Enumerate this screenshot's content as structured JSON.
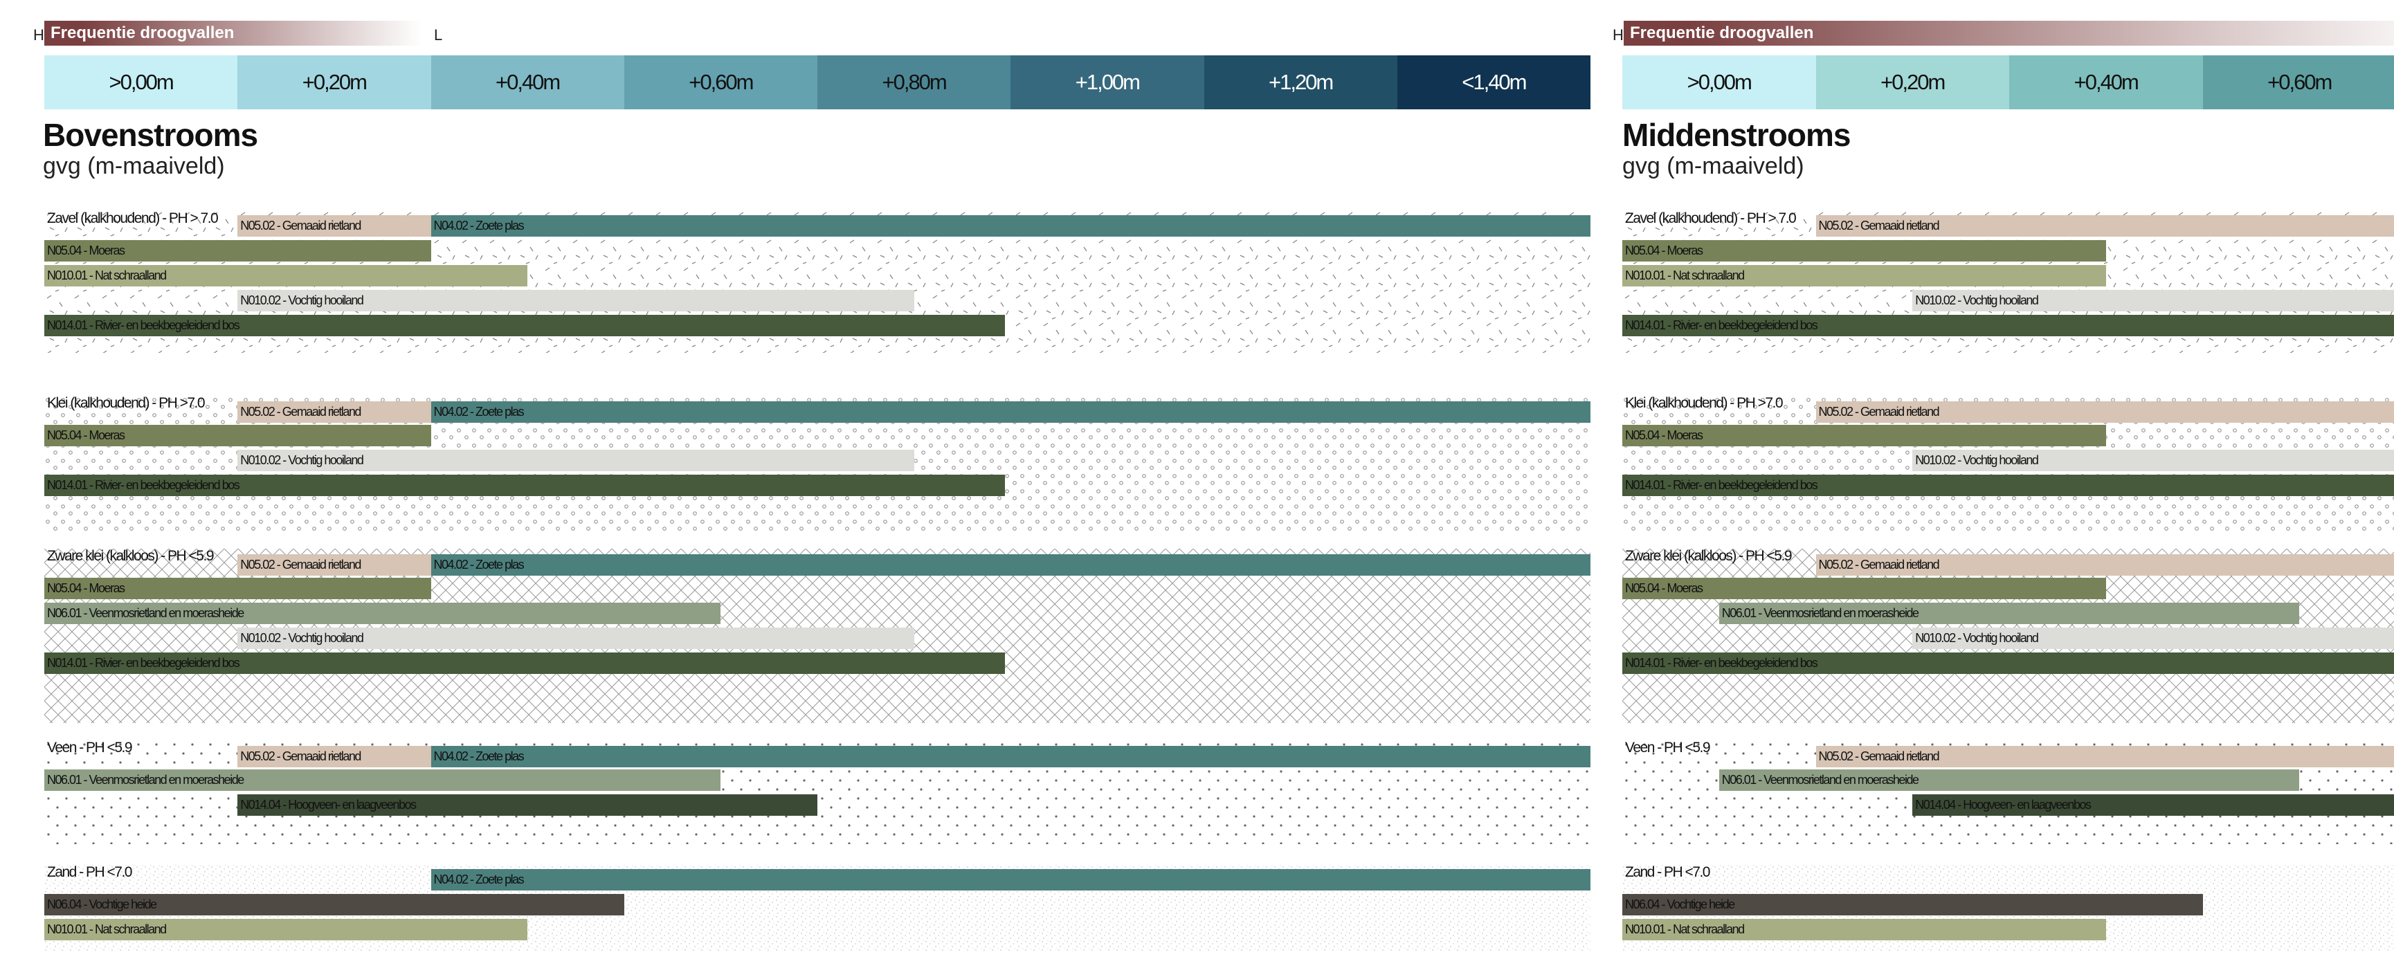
{
  "freq_title": "Frequentie droogvallen",
  "freq_hl": {
    "h": "H",
    "l": "L"
  },
  "sub_title": "gvg (m-maaiveld)",
  "scale": [
    ">0,00m",
    "+0,20m",
    "+0,40m",
    "+0,60m",
    "+0,80m",
    "+1,00m",
    "+1,20m",
    "<1,40m"
  ],
  "colors": {
    "scale": [
      "#c6f0f5",
      "#a2d6e0",
      "#7fbac6",
      "#64a2b0",
      "#4d8796",
      "#37697e",
      "#214f66",
      "#0f3350"
    ],
    "scale_text": [
      "#111",
      "#111",
      "#111",
      "#111",
      "#111",
      "#fff",
      "#fff",
      "#fff"
    ],
    "scale_m": [
      "#c6f0f5",
      "#a2d8d6",
      "#7fbfbd",
      "#5fa1a3"
    ],
    "freq_gradient": [
      "#7a3f40",
      "#ffffff"
    ],
    "types": {
      "N05.02": "#d7c4b4",
      "N04.02": "#4b807d",
      "N05.04": "#778258",
      "N010.01": "#a8ae84",
      "N010.02": "#dcdcd8",
      "N014.01": "#475a3c",
      "N06.01": "#8e9f85",
      "N014.04": "#3b4a35",
      "N06.04": "#4f4a44"
    }
  },
  "panels": [
    {
      "name": "Bovenstrooms",
      "soils": [
        {
          "label": "Zavel (kalkhoudend) - PH > 7.0",
          "pattern": "dash",
          "bars": [
            {
              "type": "N05.02",
              "label": "N05.02 - Gemaaid rietland",
              "from": 1,
              "to": 2
            },
            {
              "type": "N04.02",
              "label": "N04.02 - Zoete plas",
              "from": 2,
              "to": 8
            },
            {
              "type": "N05.04",
              "label": "N05.04 - Moeras",
              "from": 0,
              "to": 2
            },
            {
              "type": "N010.01",
              "label": "N010.01 - Nat schraalland",
              "from": 0,
              "to": 2.5
            },
            {
              "type": "N010.02",
              "label": "N010.02 - Vochtig hooiland",
              "from": 1,
              "to": 4.5
            },
            {
              "type": "N014.01",
              "label": "N014.01 - Rivier- en beekbegeleidend bos",
              "from": 0,
              "to": 4.97
            }
          ]
        },
        {
          "label": "Klei (kalkhoudend) - PH >7.0",
          "pattern": "circle",
          "bars": [
            {
              "type": "N05.02",
              "label": "N05.02 - Gemaaid rietland",
              "from": 1,
              "to": 2
            },
            {
              "type": "N04.02",
              "label": "N04.02 - Zoete plas",
              "from": 2,
              "to": 8
            },
            {
              "type": "N05.04",
              "label": "N05.04 - Moeras",
              "from": 0,
              "to": 2
            },
            {
              "type": "N010.02",
              "label": "N010.02 - Vochtig hooiland",
              "from": 1,
              "to": 4.5
            },
            {
              "type": "N014.01",
              "label": "N014.01 - Rivier- en beekbegeleidend bos",
              "from": 0,
              "to": 4.97
            }
          ]
        },
        {
          "label": "Zware klei (kalkloos) - PH <5.9",
          "pattern": "cross",
          "bars": [
            {
              "type": "N05.02",
              "label": "N05.02 - Gemaaid rietland",
              "from": 1,
              "to": 2
            },
            {
              "type": "N04.02",
              "label": "N04.02 - Zoete plas",
              "from": 2,
              "to": 8
            },
            {
              "type": "N05.04",
              "label": "N05.04 - Moeras",
              "from": 0,
              "to": 2
            },
            {
              "type": "N06.01",
              "label": "N06.01 - Veenmosrietland en moerasheide",
              "from": 0,
              "to": 3.5
            },
            {
              "type": "N010.02",
              "label": "N010.02 - Vochtig hooiland",
              "from": 1,
              "to": 4.5
            },
            {
              "type": "N014.01",
              "label": "N014.01 - Rivier- en beekbegeleidend bos",
              "from": 0,
              "to": 4.97
            }
          ]
        },
        {
          "label": "Veen  - PH <5.9",
          "pattern": "dot",
          "bars": [
            {
              "type": "N05.02",
              "label": "N05.02 - Gemaaid rietland",
              "from": 1,
              "to": 2
            },
            {
              "type": "N04.02",
              "label": "N04.02 - Zoete plas",
              "from": 2,
              "to": 8
            },
            {
              "type": "N06.01",
              "label": "N06.01 - Veenmosrietland en moerasheide",
              "from": 0,
              "to": 3.5
            },
            {
              "type": "N014.04",
              "label": "N014.04 - Hoogveen- en laagveenbos",
              "from": 1,
              "to": 4
            }
          ]
        },
        {
          "label": "Zand - PH <7.0",
          "pattern": "speck",
          "bars": [
            {
              "type": "N04.02",
              "label": "N04.02 - Zoete plas",
              "from": 2,
              "to": 8
            },
            {
              "type": "N06.04",
              "label": "N06.04 - Vochtige heide",
              "from": 0,
              "to": 3
            },
            {
              "type": "N010.01",
              "label": "N010.01 - Nat schraalland",
              "from": 0,
              "to": 2.5
            }
          ]
        }
      ]
    },
    {
      "name": "Middenstrooms",
      "soils": [
        {
          "label": "Zavel (kalkhoudend) - PH > 7.0",
          "pattern": "dash",
          "bars": [
            {
              "type": "N05.02",
              "label": "N05.02 - Gemaaid rietland",
              "from": 1,
              "to": 5
            },
            {
              "type": "N05.04",
              "label": "N05.04 - Moeras",
              "from": 0,
              "to": 2.5
            },
            {
              "type": "N010.01",
              "label": "N010.01 - Nat schraalland",
              "from": 0,
              "to": 2.5
            },
            {
              "type": "N010.02",
              "label": "N010.02 - Vochtig hooiland",
              "from": 1.5,
              "to": 5
            },
            {
              "type": "N014.01",
              "label": "N014.01 - Rivier- en beekbegeleidend bos",
              "from": 0,
              "to": 5
            }
          ]
        },
        {
          "label": "Klei (kalkhoudend) - PH >7.0",
          "pattern": "circle",
          "bars": [
            {
              "type": "N05.02",
              "label": "N05.02 - Gemaaid rietland",
              "from": 1,
              "to": 5
            },
            {
              "type": "N05.04",
              "label": "N05.04 - Moeras",
              "from": 0,
              "to": 2.5
            },
            {
              "type": "N010.02",
              "label": "N010.02 - Vochtig hooiland",
              "from": 1.5,
              "to": 5
            },
            {
              "type": "N014.01",
              "label": "N014.01 - Rivier- en beekbegeleidend bos",
              "from": 0,
              "to": 5
            }
          ]
        },
        {
          "label": "Zware klei (kalkloos) - PH <5.9",
          "pattern": "cross",
          "bars": [
            {
              "type": "N05.02",
              "label": "N05.02 - Gemaaid rietland",
              "from": 1,
              "to": 5
            },
            {
              "type": "N05.04",
              "label": "N05.04 - Moeras",
              "from": 0,
              "to": 2.5
            },
            {
              "type": "N06.01",
              "label": "N06.01 - Veenmosrietland en moerasheide",
              "from": 0.5,
              "to": 3.5
            },
            {
              "type": "N010.02",
              "label": "N010.02 - Vochtig hooiland",
              "from": 1.5,
              "to": 5
            },
            {
              "type": "N014.01",
              "label": "N014.01 - Rivier- en beekbegeleidend bos",
              "from": 0,
              "to": 5
            }
          ]
        },
        {
          "label": "Veen  - PH <5.9",
          "pattern": "dot",
          "bars": [
            {
              "type": "N05.02",
              "label": "N05.02 - Gemaaid rietland",
              "from": 1,
              "to": 5
            },
            {
              "type": "N06.01",
              "label": "N06.01 - Veenmosrietland en moerasheide",
              "from": 0.5,
              "to": 3.5
            },
            {
              "type": "N014.04",
              "label": "N014.04 - Hoogveen- en laagveenbos",
              "from": 1.5,
              "to": 5
            }
          ]
        },
        {
          "label": "Zand - PH <7.0",
          "pattern": "speck",
          "bars": [
            {
              "type": "N06.04",
              "label": "N06.04 - Vochtige heide",
              "from": 0,
              "to": 3
            },
            {
              "type": "N010.01",
              "label": "N010.01 - Nat schraalland",
              "from": 0,
              "to": 2.5
            }
          ]
        }
      ]
    }
  ]
}
